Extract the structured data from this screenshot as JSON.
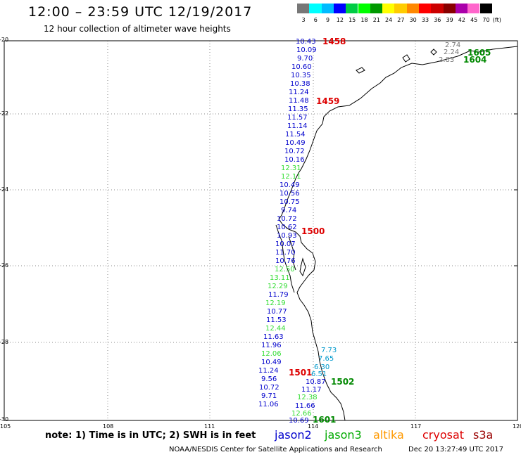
{
  "header": {
    "title": "12:00 – 23:59 UTC 12/19/2017",
    "subtitle": "12 hour collection of altimeter wave heights"
  },
  "colorbar": {
    "ticks": [
      "3",
      "6",
      "9",
      "12",
      "15",
      "18",
      "21",
      "24",
      "27",
      "30",
      "33",
      "36",
      "39",
      "42",
      "45",
      "70"
    ],
    "unit": "(ft)",
    "colors": [
      "#777777",
      "#00ffff",
      "#00bbff",
      "#0000ff",
      "#00cc44",
      "#00ff00",
      "#009900",
      "#ffff00",
      "#ffcc00",
      "#ff8800",
      "#ff0000",
      "#cc0000",
      "#880000",
      "#aa00aa",
      "#ff66cc",
      "#000000"
    ]
  },
  "axes": {
    "lon_labels": [
      "105",
      "108",
      "111",
      "114",
      "117",
      "120"
    ],
    "lat_labels": [
      "-20",
      "-22",
      "-24",
      "-26",
      "-28",
      "-30"
    ]
  },
  "tracks": {
    "jason2_main": [
      {
        "v": "10.43",
        "c": "#0000cc"
      },
      {
        "v": "10.09",
        "c": "#0000cc"
      },
      {
        "v": "9.70",
        "c": "#0000cc"
      },
      {
        "v": "10.60",
        "c": "#0000cc"
      },
      {
        "v": "10.35",
        "c": "#0000cc"
      },
      {
        "v": "10.38",
        "c": "#0000cc"
      },
      {
        "v": "11.24",
        "c": "#0000cc"
      },
      {
        "v": "11.48",
        "c": "#0000cc"
      },
      {
        "v": "11.35",
        "c": "#0000cc"
      },
      {
        "v": "11.57",
        "c": "#0000cc"
      },
      {
        "v": "11.14",
        "c": "#0000cc"
      },
      {
        "v": "11.54",
        "c": "#0000cc"
      },
      {
        "v": "10.49",
        "c": "#0000cc"
      },
      {
        "v": "10.72",
        "c": "#0000cc"
      },
      {
        "v": "10.16",
        "c": "#0000cc"
      },
      {
        "v": "12.31",
        "c": "#33dd33"
      },
      {
        "v": "12.11",
        "c": "#33dd33"
      },
      {
        "v": "10.49",
        "c": "#0000cc"
      },
      {
        "v": "10.56",
        "c": "#0000cc"
      },
      {
        "v": "10.75",
        "c": "#0000cc"
      },
      {
        "v": "9.74",
        "c": "#0000cc"
      },
      {
        "v": "10.72",
        "c": "#0000cc"
      },
      {
        "v": "10.62",
        "c": "#0000cc"
      },
      {
        "v": "10.93",
        "c": "#0000cc"
      },
      {
        "v": "10.07",
        "c": "#0000cc"
      },
      {
        "v": "11.70",
        "c": "#0000cc"
      },
      {
        "v": "10.76",
        "c": "#0000cc"
      },
      {
        "v": "12.50",
        "c": "#33dd33"
      },
      {
        "v": "13.11",
        "c": "#33dd33"
      },
      {
        "v": "12.29",
        "c": "#33dd33"
      },
      {
        "v": "11.79",
        "c": "#0000cc"
      },
      {
        "v": "12.19",
        "c": "#33dd33"
      },
      {
        "v": "10.77",
        "c": "#0000cc"
      },
      {
        "v": "11.53",
        "c": "#0000cc"
      },
      {
        "v": "12.44",
        "c": "#33dd33"
      },
      {
        "v": "11.63",
        "c": "#0000cc"
      },
      {
        "v": "11.96",
        "c": "#0000cc"
      },
      {
        "v": "12.06",
        "c": "#33dd33"
      },
      {
        "v": "10.49",
        "c": "#0000cc"
      },
      {
        "v": "11.24",
        "c": "#0000cc"
      },
      {
        "v": "9.56",
        "c": "#0000cc"
      },
      {
        "v": "10.72",
        "c": "#0000cc"
      },
      {
        "v": "9.71",
        "c": "#0000cc"
      },
      {
        "v": "11.06",
        "c": "#0000cc"
      }
    ],
    "south_cluster": [
      {
        "v": "7.73",
        "c": "#0099cc"
      },
      {
        "v": "7.65",
        "c": "#0099cc"
      },
      {
        "v": "6.30",
        "c": "#0099cc"
      },
      {
        "v": "6.51",
        "c": "#0099cc"
      },
      {
        "v": "10.87",
        "c": "#0000cc"
      },
      {
        "v": "11.17",
        "c": "#0000cc"
      },
      {
        "v": "12.38",
        "c": "#33dd33"
      },
      {
        "v": "11.66",
        "c": "#0000cc"
      },
      {
        "v": "12.66",
        "c": "#33dd33"
      },
      {
        "v": "10.69",
        "c": "#0000cc"
      }
    ],
    "northeast": [
      {
        "v": "2.74",
        "c": "#777777"
      },
      {
        "v": "2.24",
        "c": "#777777"
      },
      {
        "v": "2.83",
        "c": "#777777"
      }
    ]
  },
  "pass_labels": [
    {
      "t": "1458",
      "c": "#dd0000"
    },
    {
      "t": "1459",
      "c": "#dd0000"
    },
    {
      "t": "1500",
      "c": "#dd0000"
    },
    {
      "t": "1501",
      "c": "#dd0000"
    },
    {
      "t": "1502",
      "c": "#008800"
    },
    {
      "t": "1601",
      "c": "#008800"
    },
    {
      "t": "1605",
      "c": "#008800"
    },
    {
      "t": "1604",
      "c": "#008800"
    }
  ],
  "footer": {
    "note": "note: 1) Time is in UTC; 2) SWH is in feet",
    "missions": [
      {
        "name": "jason2",
        "color": "#0000cc"
      },
      {
        "name": "jason3",
        "color": "#00aa00"
      },
      {
        "name": "altika",
        "color": "#ff9900"
      },
      {
        "name": "cryosat",
        "color": "#dd0000"
      },
      {
        "name": "s3a",
        "color": "#990000"
      }
    ],
    "credit": "NOAA/NESDIS Center for Satellite Applications and Research",
    "timestamp": "Dec 20 13:27:49 UTC 2017"
  }
}
